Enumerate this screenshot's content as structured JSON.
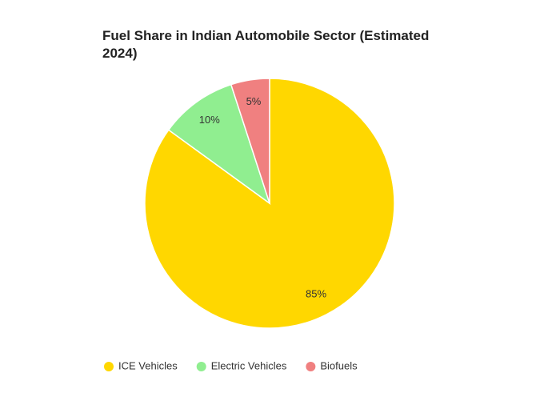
{
  "chart_data": {
    "type": "pie",
    "title": "Fuel Share in Indian Automobile Sector (Estimated 2024)",
    "categories": [
      "ICE Vehicles",
      "Electric Vehicles",
      "Biofuels"
    ],
    "values": [
      85,
      10,
      5
    ],
    "value_labels": [
      "85%",
      "10%",
      "5%"
    ],
    "colors": [
      "#ffd700",
      "#90ee90",
      "#f08080"
    ],
    "legend": "bottom"
  }
}
